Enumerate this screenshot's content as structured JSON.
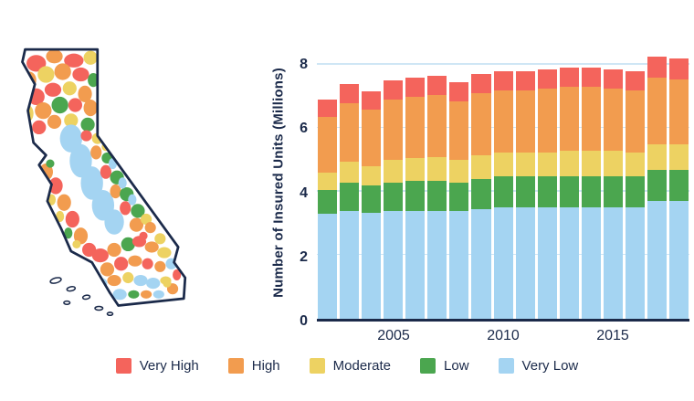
{
  "map": {
    "region": "California",
    "kind": "fire-risk-zones-map",
    "categories": [
      "Very High",
      "High",
      "Moderate",
      "Low",
      "Very Low"
    ]
  },
  "legend": {
    "items": [
      {
        "label": "Very High",
        "color": "#F4645C"
      },
      {
        "label": "High",
        "color": "#F29C4F"
      },
      {
        "label": "Moderate",
        "color": "#EDD262"
      },
      {
        "label": "Low",
        "color": "#4BA64F"
      },
      {
        "label": "Very Low",
        "color": "#A4D4F2"
      }
    ]
  },
  "chart_data": {
    "type": "bar",
    "stacked": true,
    "title": "",
    "xlabel": "",
    "ylabel": "Number of Insured Units (Millions)",
    "ylim": [
      0,
      8.6
    ],
    "yticks": [
      0,
      2,
      4,
      6,
      8
    ],
    "years": [
      2002,
      2003,
      2004,
      2005,
      2006,
      2007,
      2008,
      2009,
      2010,
      2011,
      2012,
      2013,
      2014,
      2015,
      2016,
      2017,
      2018
    ],
    "xtick_labels": [
      "2005",
      "2010",
      "2015"
    ],
    "grid": true,
    "legend_position": "bottom",
    "series": [
      {
        "name": "Very Low",
        "color": "#A4D4F2",
        "values": [
          3.3,
          3.4,
          3.35,
          3.4,
          3.4,
          3.4,
          3.4,
          3.45,
          3.5,
          3.5,
          3.5,
          3.5,
          3.5,
          3.5,
          3.5,
          3.7,
          3.7
        ]
      },
      {
        "name": "Low",
        "color": "#4BA64F",
        "values": [
          0.75,
          0.9,
          0.85,
          0.9,
          0.95,
          0.95,
          0.9,
          0.95,
          1.0,
          1.0,
          1.0,
          1.0,
          1.0,
          1.0,
          1.0,
          1.0,
          1.0
        ]
      },
      {
        "name": "Moderate",
        "color": "#EDD262",
        "values": [
          0.55,
          0.65,
          0.6,
          0.7,
          0.7,
          0.75,
          0.7,
          0.75,
          0.75,
          0.75,
          0.75,
          0.8,
          0.8,
          0.8,
          0.75,
          0.8,
          0.8
        ]
      },
      {
        "name": "High",
        "color": "#F29C4F",
        "values": [
          1.75,
          1.85,
          1.8,
          1.9,
          1.95,
          1.95,
          1.85,
          1.95,
          1.95,
          1.95,
          2.0,
          2.0,
          2.0,
          1.95,
          1.95,
          2.1,
          2.05
        ]
      },
      {
        "name": "Very High",
        "color": "#F4645C",
        "values": [
          0.55,
          0.6,
          0.55,
          0.6,
          0.6,
          0.6,
          0.6,
          0.6,
          0.6,
          0.6,
          0.6,
          0.6,
          0.6,
          0.6,
          0.6,
          0.65,
          0.65
        ]
      }
    ]
  }
}
